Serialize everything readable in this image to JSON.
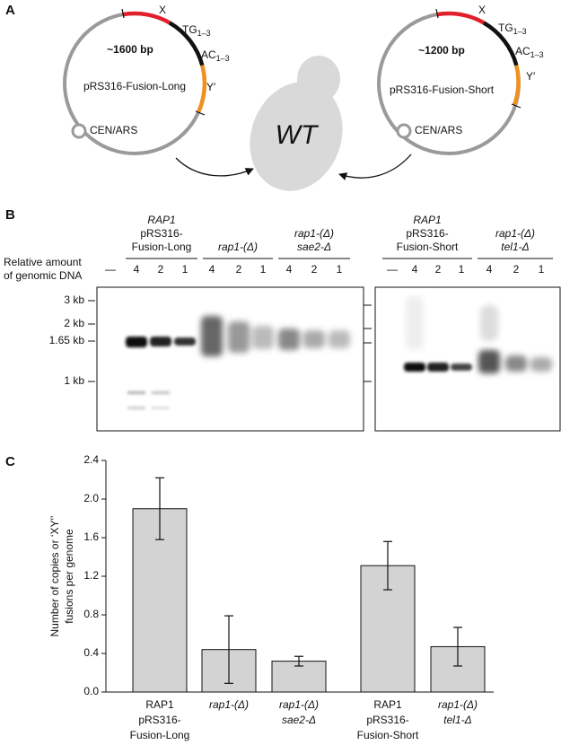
{
  "panel_a": {
    "label": "A",
    "left_plasmid": {
      "size": "~1600 bp",
      "name": "pRS316-Fusion-Long",
      "origin": "CEN/ARS",
      "x_label": "X",
      "tg": {
        "text": "TG",
        "sub": "1–3"
      },
      "ac": {
        "text": "AC",
        "sub": "1–3"
      },
      "y_label": "Y′"
    },
    "right_plasmid": {
      "size": "~1200 bp",
      "name": "pRS316-Fusion-Short",
      "origin": "CEN/ARS",
      "x_label": "X",
      "tg": {
        "text": "TG",
        "sub": "1–3"
      },
      "ac": {
        "text": "AC",
        "sub": "1–3"
      },
      "y_label": "Y′"
    },
    "cell": "WT"
  },
  "panel_b": {
    "label": "B",
    "groups": [
      [
        "RAP1",
        "pRS316-",
        "Fusion-Long"
      ],
      [
        "rap1-(Δ)"
      ],
      [
        "rap1-(Δ)",
        "sae2-Δ"
      ],
      [
        "RAP1",
        "pRS316-",
        "Fusion-Short"
      ],
      [
        "rap1-(Δ)",
        "tel1-Δ"
      ]
    ],
    "row_label": [
      "Relative amount",
      "of genomic DNA"
    ],
    "left_lanes": [
      "—",
      "4",
      "2",
      "1",
      "4",
      "2",
      "1",
      "4",
      "2",
      "1"
    ],
    "right_lanes": [
      "—",
      "4",
      "2",
      "1",
      "4",
      "2",
      "1"
    ],
    "markers": [
      "3 kb",
      "2 kb",
      "1.65 kb",
      "1 kb"
    ]
  },
  "panel_c": {
    "label": "C"
  },
  "chart_data": {
    "type": "bar",
    "y_label": [
      "Number of copies or ‘XY′’",
      "fusions per genome"
    ],
    "categories": [
      [
        "RAP1",
        "pRS316-",
        "Fusion-Long"
      ],
      [
        "rap1-(Δ)"
      ],
      [
        "rap1-(Δ)",
        "sae2-Δ"
      ],
      [
        "RAP1",
        "pRS316-",
        "Fusion-Short"
      ],
      [
        "rap1-(Δ)",
        "tel1-Δ"
      ]
    ],
    "values": [
      1.9,
      0.44,
      0.32,
      1.31,
      0.47
    ],
    "errors": [
      0.32,
      0.35,
      0.05,
      0.25,
      0.2
    ],
    "color": "#d3d3d3",
    "ylim": [
      0,
      2.4
    ],
    "yticks": [
      {
        "value": 0,
        "label": "0.0"
      },
      0.4,
      0.8,
      1.2,
      1.6,
      {
        "value": 2,
        "label": "2.0"
      },
      2.4
    ]
  }
}
